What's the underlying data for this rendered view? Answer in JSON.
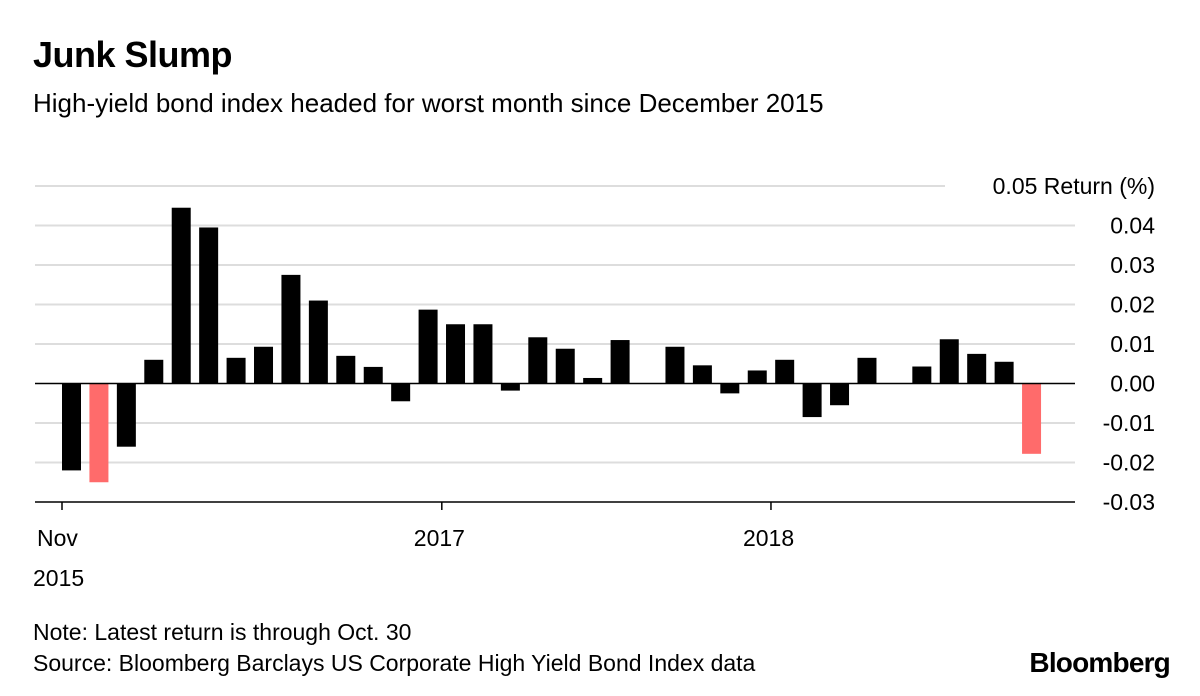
{
  "header": {
    "title": "Junk Slump",
    "subtitle": "High-yield bond index headed for worst month since December 2015"
  },
  "footer": {
    "note": "Note: Latest return is through Oct. 30",
    "source": "Source: Bloomberg Barclays US Corporate High Yield Bond Index data",
    "logo": "Bloomberg"
  },
  "colors": {
    "positive": "#000000",
    "negative": "#000000",
    "highlight": "#ff6b6b",
    "grid": "#dddddd",
    "axis": "#000000"
  },
  "chart_data": {
    "type": "bar",
    "title": "Junk Slump",
    "subtitle": "High-yield bond index headed for worst month since December 2015",
    "ylabel": "Return (%)",
    "ylim": [
      -0.03,
      0.05
    ],
    "yticks": [
      "0.05",
      "0.04",
      "0.03",
      "0.02",
      "0.01",
      "0.00",
      "-0.01",
      "-0.02",
      "-0.03"
    ],
    "ytick_values": [
      0.05,
      0.04,
      0.03,
      0.02,
      0.01,
      0.0,
      -0.01,
      -0.02,
      -0.03
    ],
    "xticks": [
      {
        "label": "Nov",
        "sublabel": "2015",
        "month": "2015-11"
      },
      {
        "label": "2017",
        "sublabel": "",
        "month": "2017-01"
      },
      {
        "label": "2018",
        "sublabel": "",
        "month": "2018-01"
      }
    ],
    "categories": [
      "2015-11",
      "2015-12",
      "2016-01",
      "2016-02",
      "2016-03",
      "2016-04",
      "2016-05",
      "2016-06",
      "2016-07",
      "2016-08",
      "2016-09",
      "2016-10",
      "2016-11",
      "2016-12",
      "2017-01",
      "2017-02",
      "2017-03",
      "2017-04",
      "2017-05",
      "2017-06",
      "2017-07",
      "2017-08",
      "2017-09",
      "2017-10",
      "2017-11",
      "2017-12",
      "2018-01",
      "2018-02",
      "2018-03",
      "2018-04",
      "2018-05",
      "2018-06",
      "2018-07",
      "2018-08",
      "2018-09",
      "2018-10"
    ],
    "values": [
      -0.022,
      -0.025,
      -0.016,
      0.006,
      0.0445,
      0.0395,
      0.0065,
      0.0093,
      0.0275,
      0.021,
      0.007,
      0.0042,
      -0.0045,
      0.0187,
      0.015,
      0.015,
      -0.0018,
      0.0117,
      0.0088,
      0.0014,
      0.011,
      0.0,
      0.0093,
      0.0046,
      -0.0025,
      0.0033,
      0.006,
      -0.0085,
      -0.0055,
      0.0065,
      0.0,
      0.0043,
      0.0112,
      0.0075,
      0.0055,
      -0.0178
    ],
    "highlighted": [
      "2015-12",
      "2018-10"
    ],
    "grid": true
  }
}
